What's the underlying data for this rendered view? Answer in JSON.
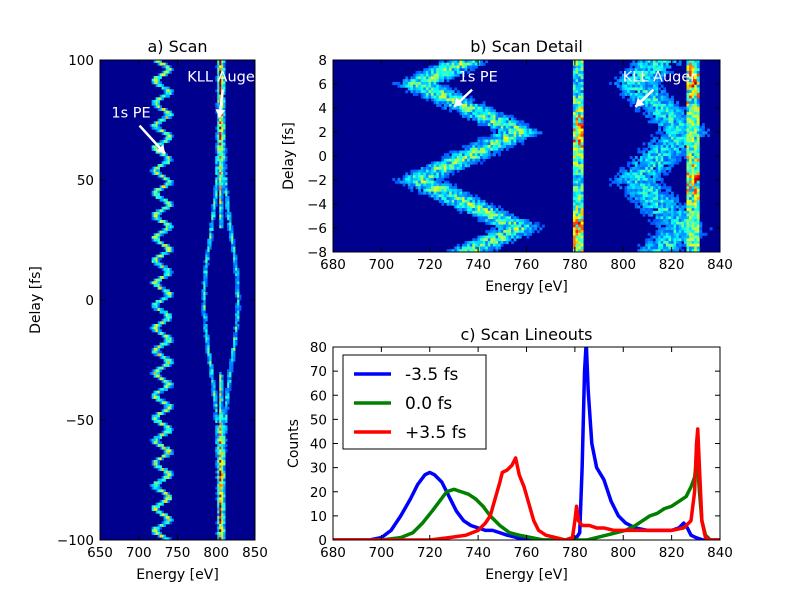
{
  "chart_data": [
    {
      "id": "a",
      "type": "heatmap",
      "title": "a) Scan",
      "xlabel": "Energy [eV]",
      "ylabel": "Delay [fs]",
      "xlim": [
        650,
        850
      ],
      "ylim": [
        -100,
        100
      ],
      "xticks": [
        650,
        700,
        750,
        800,
        850
      ],
      "yticks": [
        -100,
        -50,
        0,
        50,
        100
      ],
      "ytick_labels": [
        "−100",
        "−50",
        "0",
        "50",
        "100"
      ],
      "annotations": [
        {
          "text": "1s PE",
          "text_x": 690,
          "text_y": 76,
          "arrow_to": [
            734,
            61
          ]
        },
        {
          "text": "KLL Auger",
          "text_x": 810,
          "text_y": 91,
          "arrow_to": [
            804,
            76
          ]
        }
      ]
    },
    {
      "id": "b",
      "type": "heatmap",
      "title": "b) Scan Detail",
      "xlabel": "Energy [eV]",
      "ylabel": "Delay [fs]",
      "xlim": [
        680,
        840
      ],
      "ylim": [
        -8,
        8
      ],
      "xticks": [
        680,
        700,
        720,
        740,
        760,
        780,
        800,
        820,
        840
      ],
      "yticks": [
        -8,
        -6,
        -4,
        -2,
        0,
        2,
        4,
        6,
        8
      ],
      "ytick_labels": [
        "−8",
        "−6",
        "−4",
        "−2",
        "0",
        "2",
        "4",
        "6",
        "8"
      ],
      "annotations": [
        {
          "text": "1s PE",
          "text_x": 740,
          "text_y": 6.2,
          "arrow_to": [
            730,
            4.1
          ]
        },
        {
          "text": "KLL Auger",
          "text_x": 815,
          "text_y": 6.2,
          "arrow_to": [
            805,
            4.1
          ]
        }
      ]
    },
    {
      "id": "c",
      "type": "line",
      "title": "c) Scan Lineouts",
      "xlabel": "Energy [eV]",
      "ylabel": "Counts",
      "xlim": [
        680,
        840
      ],
      "ylim": [
        0,
        80
      ],
      "xticks": [
        680,
        700,
        720,
        740,
        760,
        780,
        800,
        820,
        840
      ],
      "yticks": [
        0,
        10,
        20,
        30,
        40,
        50,
        60,
        70,
        80
      ],
      "legend": "top-left",
      "series": [
        {
          "name": "-3.5 fs",
          "color": "#0000ff",
          "points": [
            [
              680,
              0
            ],
            [
              695,
              0
            ],
            [
              700,
              1
            ],
            [
              704,
              4
            ],
            [
              708,
              10
            ],
            [
              712,
              17
            ],
            [
              715,
              23
            ],
            [
              718,
              27
            ],
            [
              720,
              28
            ],
            [
              722,
              27
            ],
            [
              725,
              24
            ],
            [
              728,
              18
            ],
            [
              731,
              12
            ],
            [
              734,
              8
            ],
            [
              737,
              6
            ],
            [
              740,
              5
            ],
            [
              743,
              4
            ],
            [
              746,
              4
            ],
            [
              749,
              3
            ],
            [
              752,
              2
            ],
            [
              756,
              1
            ],
            [
              760,
              0
            ],
            [
              770,
              0
            ],
            [
              780,
              0
            ],
            [
              782,
              3
            ],
            [
              783,
              30
            ],
            [
              784,
              70
            ],
            [
              784.7,
              82
            ],
            [
              785.5,
              62
            ],
            [
              787,
              40
            ],
            [
              789,
              30
            ],
            [
              792,
              25
            ],
            [
              795,
              16
            ],
            [
              798,
              10
            ],
            [
              801,
              7
            ],
            [
              805,
              5
            ],
            [
              810,
              4
            ],
            [
              815,
              4
            ],
            [
              820,
              4
            ],
            [
              823,
              5
            ],
            [
              825,
              7
            ],
            [
              826.5,
              5
            ],
            [
              828,
              2
            ],
            [
              830,
              1
            ],
            [
              833,
              0
            ],
            [
              840,
              0
            ]
          ]
        },
        {
          "name": "0.0 fs",
          "color": "#008000",
          "points": [
            [
              680,
              0
            ],
            [
              700,
              0
            ],
            [
              708,
              1
            ],
            [
              713,
              3
            ],
            [
              717,
              7
            ],
            [
              721,
              12
            ],
            [
              724,
              16
            ],
            [
              727,
              20
            ],
            [
              730,
              21
            ],
            [
              733,
              20
            ],
            [
              736,
              19
            ],
            [
              739,
              17
            ],
            [
              742,
              14
            ],
            [
              745,
              10
            ],
            [
              749,
              6
            ],
            [
              753,
              3
            ],
            [
              757,
              2
            ],
            [
              762,
              1
            ],
            [
              767,
              0
            ],
            [
              780,
              0
            ],
            [
              785,
              0
            ],
            [
              789,
              1
            ],
            [
              793,
              2
            ],
            [
              797,
              3
            ],
            [
              801,
              4
            ],
            [
              805,
              6
            ],
            [
              808,
              8
            ],
            [
              811,
              10
            ],
            [
              814,
              11
            ],
            [
              817,
              13
            ],
            [
              820,
              14
            ],
            [
              823,
              16
            ],
            [
              826,
              18
            ],
            [
              828,
              22
            ],
            [
              829.5,
              26
            ],
            [
              830.5,
              35
            ],
            [
              831.5,
              20
            ],
            [
              832.5,
              8
            ],
            [
              834,
              2
            ],
            [
              836,
              0
            ],
            [
              840,
              0
            ]
          ]
        },
        {
          "name": "+3.5 fs",
          "color": "#ff0000",
          "points": [
            [
              680,
              0
            ],
            [
              720,
              0
            ],
            [
              728,
              1
            ],
            [
              735,
              2
            ],
            [
              740,
              4
            ],
            [
              743,
              7
            ],
            [
              745,
              10
            ],
            [
              747,
              17
            ],
            [
              749,
              24
            ],
            [
              750,
              28
            ],
            [
              752,
              29
            ],
            [
              754,
              31
            ],
            [
              755.5,
              34
            ],
            [
              757,
              27
            ],
            [
              759,
              22
            ],
            [
              761,
              15
            ],
            [
              763,
              8
            ],
            [
              765,
              4
            ],
            [
              768,
              2
            ],
            [
              772,
              1
            ],
            [
              776,
              0
            ],
            [
              779,
              1
            ],
            [
              780,
              8
            ],
            [
              780.7,
              14
            ],
            [
              781.5,
              8
            ],
            [
              783,
              6
            ],
            [
              786,
              6
            ],
            [
              789,
              5
            ],
            [
              792,
              5
            ],
            [
              796,
              4
            ],
            [
              800,
              4
            ],
            [
              805,
              4
            ],
            [
              810,
              4
            ],
            [
              815,
              4
            ],
            [
              820,
              4
            ],
            [
              825,
              5
            ],
            [
              828,
              8
            ],
            [
              829.5,
              20
            ],
            [
              830.3,
              40
            ],
            [
              830.8,
              46
            ],
            [
              831.5,
              30
            ],
            [
              832.5,
              8
            ],
            [
              834,
              1
            ],
            [
              836,
              0
            ],
            [
              840,
              0
            ]
          ]
        }
      ]
    }
  ]
}
